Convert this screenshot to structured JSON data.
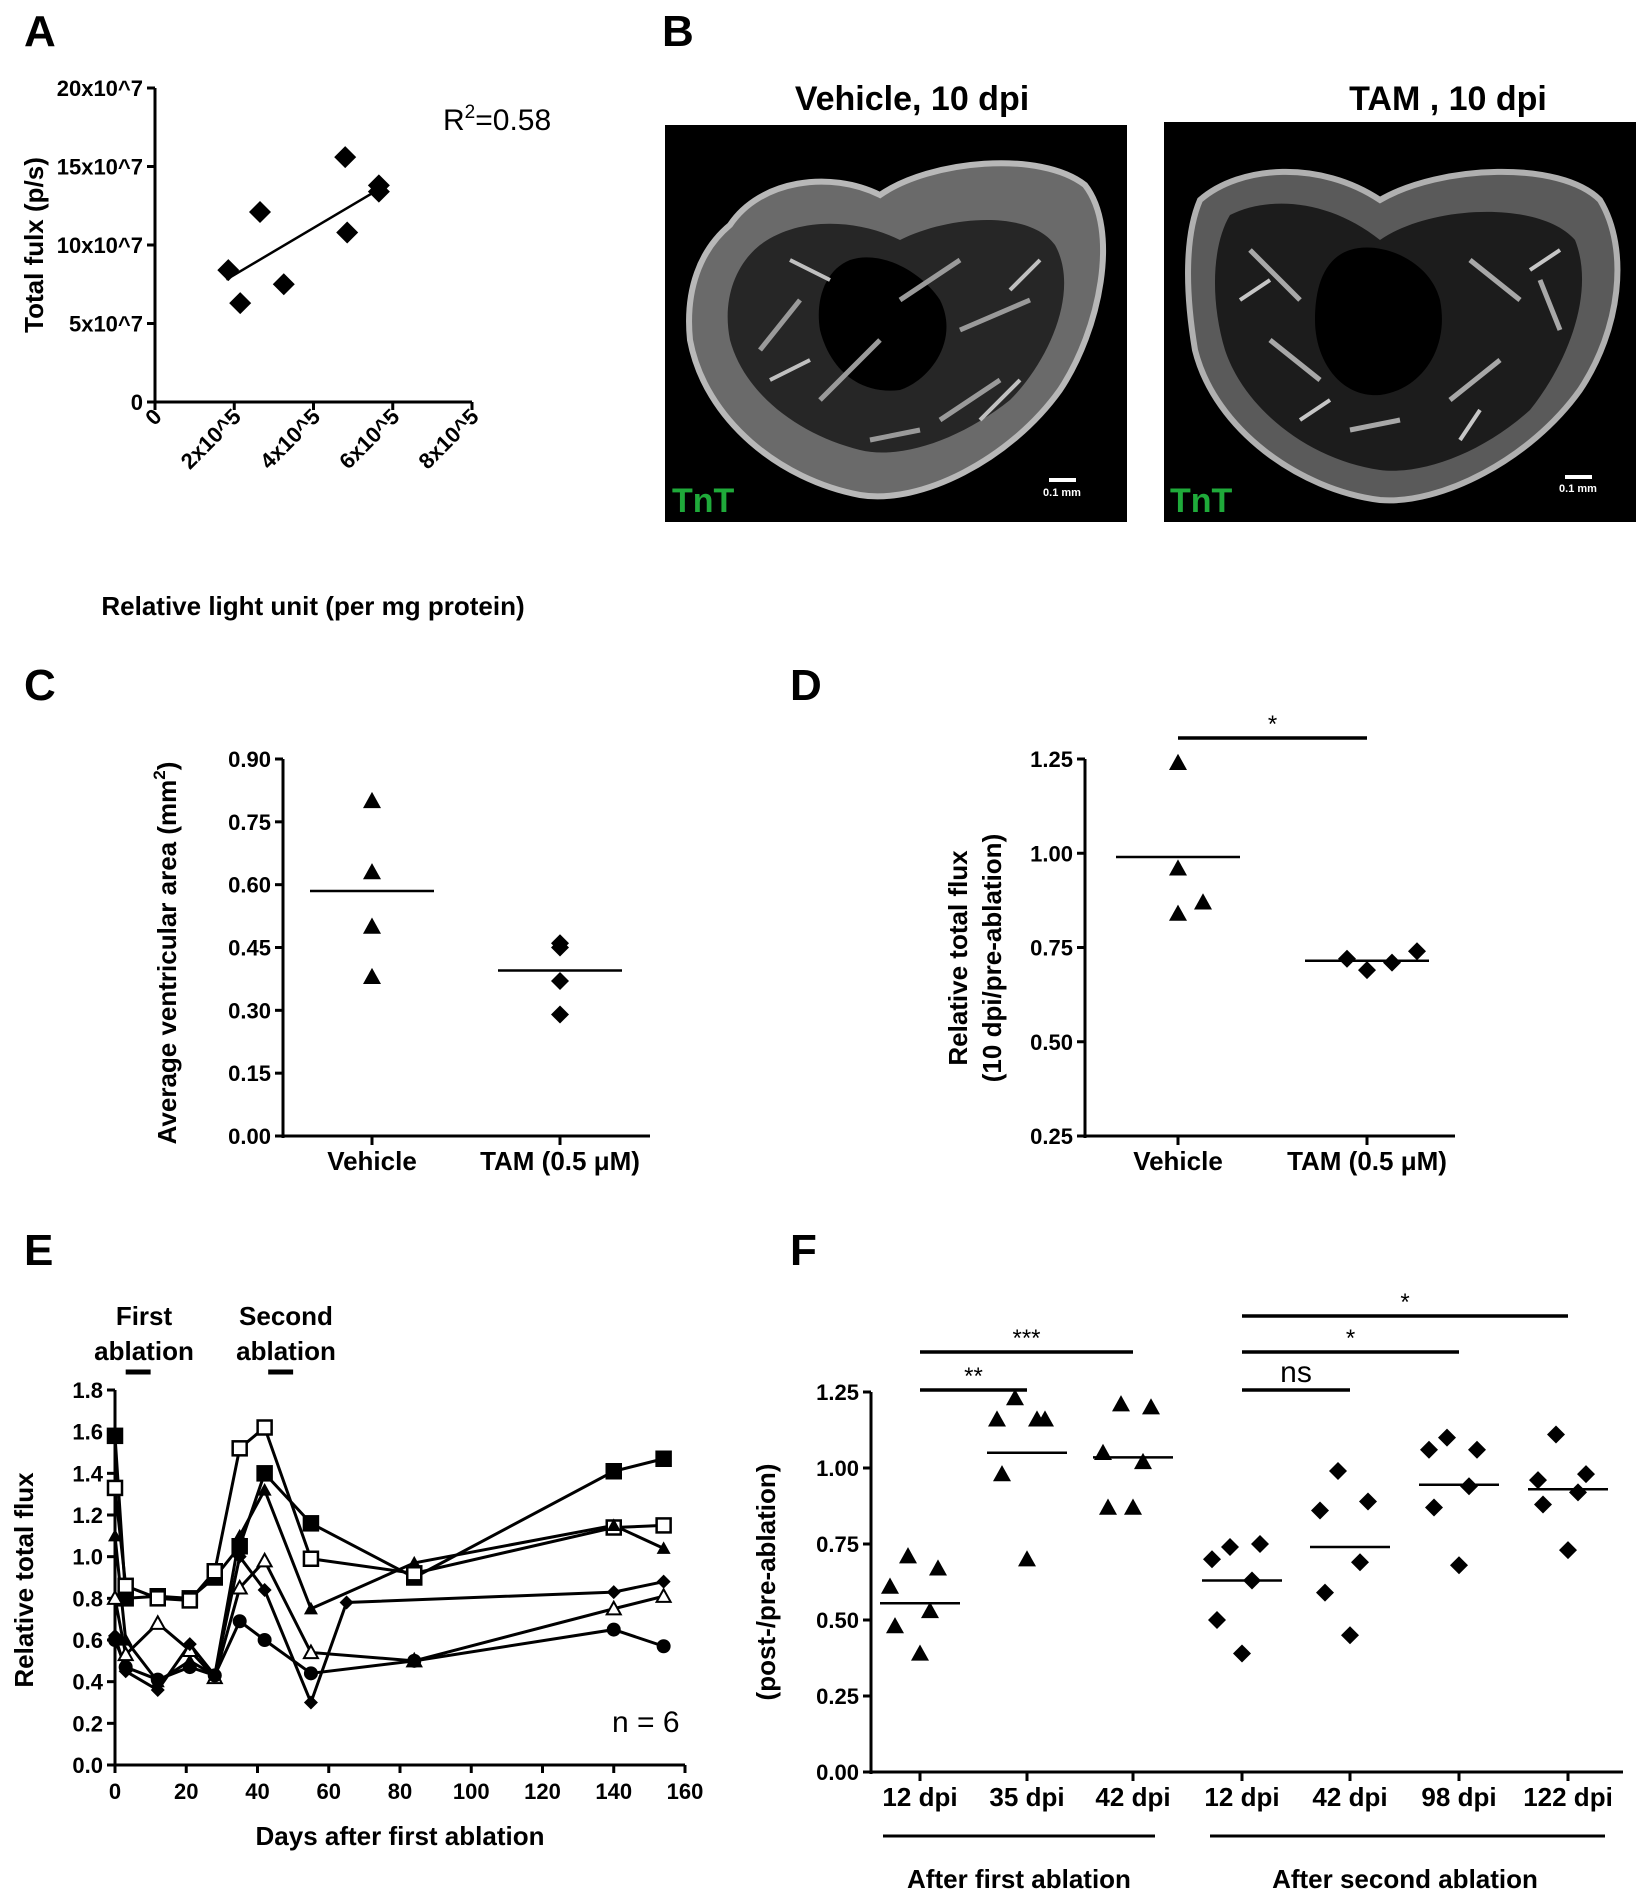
{
  "panels": {
    "A": {
      "letter": "A",
      "annotation_r2_base": "R",
      "annotation_r2_sup": "2",
      "annotation_r2_value": "=0.58",
      "chart_data": {
        "type": "scatter",
        "xlabel": "Relative light unit (per mg protein)",
        "ylabel": "Total fulx (p/s)",
        "xlim": [
          0,
          800000
        ],
        "ylim": [
          0,
          200000000
        ],
        "x_ticks": [
          0,
          200000,
          400000,
          600000,
          800000
        ],
        "x_tick_labels": [
          "0",
          "2x10^5",
          "4x10^5",
          "6x10^5",
          "8x10^5"
        ],
        "y_ticks": [
          0,
          50000000,
          100000000,
          150000000,
          200000000
        ],
        "y_tick_labels": [
          "0",
          "5x10^7",
          "10x10^7",
          "15x10^7",
          "20x10^7"
        ],
        "points": [
          {
            "x": 185000,
            "y": 84000000
          },
          {
            "x": 215000,
            "y": 63000000
          },
          {
            "x": 265000,
            "y": 121000000
          },
          {
            "x": 325000,
            "y": 75000000
          },
          {
            "x": 485000,
            "y": 108000000
          },
          {
            "x": 480000,
            "y": 156000000
          },
          {
            "x": 565000,
            "y": 138000000
          },
          {
            "x": 565000,
            "y": 134000000
          }
        ],
        "fit_line": {
          "x": [
            180000,
            575000
          ],
          "y": [
            78000000,
            137000000
          ]
        },
        "marker": "diamond"
      }
    },
    "B": {
      "letter": "B",
      "left_title": "Vehicle, 10 dpi",
      "right_title": "TAM , 10 dpi",
      "left_stain": "TnT",
      "right_stain": "TnT",
      "left_scale": "0.1 mm",
      "right_scale": "0.1 mm"
    },
    "C": {
      "letter": "C",
      "chart_data": {
        "type": "scatter",
        "ylabel": "Average ventricular area (mm",
        "ylabel_sup": "2",
        "ylabel_end": ")",
        "ylim": [
          0,
          0.9
        ],
        "y_ticks": [
          0,
          0.15,
          0.3,
          0.45,
          0.6,
          0.75,
          0.9
        ],
        "y_tick_labels": [
          "0.00",
          "0.15",
          "0.30",
          "0.45",
          "0.60",
          "0.75",
          "0.90"
        ],
        "categories": [
          "Vehicle",
          "TAM (0.5 μM)"
        ],
        "groups": [
          {
            "marker": "triangle",
            "values": [
              0.8,
              0.63,
              0.5,
              0.38
            ],
            "mean": 0.585
          },
          {
            "marker": "diamond",
            "values": [
              0.45,
              0.46,
              0.37,
              0.29
            ],
            "mean": 0.395
          }
        ]
      }
    },
    "D": {
      "letter": "D",
      "sig_label": "*",
      "chart_data": {
        "type": "scatter",
        "ylabel_line1": "Relative total flux",
        "ylabel_line2": "(10 dpi/pre-ablation)",
        "ylim": [
          0.25,
          1.25
        ],
        "y_ticks": [
          0.25,
          0.5,
          0.75,
          1.0,
          1.25
        ],
        "y_tick_labels": [
          "0.25",
          "0.50",
          "0.75",
          "1.00",
          "1.25"
        ],
        "categories": [
          "Vehicle",
          "TAM (0.5 μM)"
        ],
        "groups": [
          {
            "marker": "triangle",
            "values": [
              1.24,
              0.96,
              0.84,
              0.87
            ],
            "mean": 0.99
          },
          {
            "marker": "diamond",
            "values": [
              0.72,
              0.69,
              0.71,
              0.74
            ],
            "mean": 0.715
          }
        ],
        "significance": [
          {
            "from": 0,
            "to": 1,
            "label": "*"
          }
        ]
      }
    },
    "E": {
      "letter": "E",
      "first_ablation_label": "First\nablation",
      "first_label_line1": "First",
      "first_label_line2": "ablation",
      "second_label_line1": "Second",
      "second_label_line2": "ablation",
      "n_label": "n = 6",
      "chart_data": {
        "type": "line",
        "xlabel": "Days after first ablation",
        "ylabel": "Relative total flux",
        "xlim": [
          0,
          160
        ],
        "ylim": [
          0,
          1.8
        ],
        "x_ticks": [
          0,
          20,
          40,
          60,
          80,
          100,
          120,
          140,
          160
        ],
        "x_tick_labels": [
          "0",
          "20",
          "40",
          "60",
          "80",
          "100",
          "120",
          "140",
          "160"
        ],
        "y_ticks": [
          0,
          0.2,
          0.4,
          0.6,
          0.8,
          1.0,
          1.2,
          1.4,
          1.6,
          1.8
        ],
        "y_tick_labels": [
          "0.0",
          "0.2",
          "0.4",
          "0.6",
          "0.8",
          "1.0",
          "1.2",
          "1.4",
          "1.6",
          "1.8"
        ],
        "ablation_bars": [
          {
            "start": 3,
            "end": 10
          },
          {
            "start": 43,
            "end": 50
          }
        ],
        "series": [
          {
            "marker": "filled-square",
            "x": [
              0,
              3,
              12,
              21,
              28,
              35,
              42,
              55,
              84,
              140,
              154
            ],
            "y": [
              1.58,
              0.8,
              0.81,
              0.8,
              0.9,
              1.05,
              1.4,
              1.16,
              0.9,
              1.41,
              1.47
            ]
          },
          {
            "marker": "open-square",
            "x": [
              0,
              3,
              12,
              21,
              28,
              35,
              42,
              55,
              84,
              140,
              154
            ],
            "y": [
              1.33,
              0.86,
              0.8,
              0.79,
              0.93,
              1.52,
              1.62,
              0.99,
              0.92,
              1.14,
              1.15
            ]
          },
          {
            "marker": "filled-triangle",
            "x": [
              0,
              3,
              12,
              21,
              28,
              35,
              42,
              55,
              84,
              140,
              154
            ],
            "y": [
              1.1,
              0.6,
              0.4,
              0.5,
              0.43,
              1.1,
              1.32,
              0.75,
              0.97,
              1.15,
              1.04
            ]
          },
          {
            "marker": "open-triangle",
            "x": [
              0,
              3,
              12,
              21,
              28,
              35,
              42,
              55,
              84,
              140,
              154
            ],
            "y": [
              0.8,
              0.53,
              0.68,
              0.55,
              0.42,
              0.85,
              0.98,
              0.54,
              0.5,
              0.75,
              0.81
            ]
          },
          {
            "marker": "filled-diamond",
            "x": [
              0,
              3,
              12,
              21,
              28,
              35,
              42,
              55,
              65,
              140,
              154
            ],
            "y": [
              0.62,
              0.45,
              0.36,
              0.58,
              0.43,
              1.0,
              0.84,
              0.3,
              0.78,
              0.83,
              0.88
            ]
          },
          {
            "marker": "filled-circle",
            "x": [
              0,
              3,
              12,
              21,
              28,
              35,
              42,
              55,
              84,
              140,
              154
            ],
            "y": [
              0.6,
              0.47,
              0.41,
              0.47,
              0.43,
              0.69,
              0.6,
              0.44,
              0.5,
              0.65,
              0.57
            ]
          }
        ]
      }
    },
    "F": {
      "letter": "F",
      "group_label_1": "After first ablation",
      "group_label_2": "After second ablation",
      "chart_data": {
        "type": "scatter",
        "ylabel": "(post-/pre-ablation)",
        "ylim": [
          0,
          1.25
        ],
        "y_ticks": [
          0,
          0.25,
          0.5,
          0.75,
          1.0,
          1.25
        ],
        "y_tick_labels": [
          "0.00",
          "0.25",
          "0.50",
          "0.75",
          "1.00",
          "1.25"
        ],
        "categories": [
          "12 dpi",
          "35 dpi",
          "42 dpi",
          "12 dpi",
          "42 dpi",
          "98 dpi",
          "122 dpi"
        ],
        "groups": [
          {
            "marker": "triangle",
            "values": [
              0.71,
              0.67,
              0.61,
              0.53,
              0.48,
              0.39
            ],
            "mean": 0.555
          },
          {
            "marker": "triangle",
            "values": [
              1.23,
              1.16,
              1.16,
              1.16,
              0.98,
              0.7
            ],
            "mean": 1.05
          },
          {
            "marker": "triangle",
            "values": [
              1.21,
              1.2,
              1.05,
              1.02,
              0.87,
              0.87
            ],
            "mean": 1.035
          },
          {
            "marker": "diamond",
            "values": [
              0.74,
              0.75,
              0.7,
              0.63,
              0.5,
              0.39
            ],
            "mean": 0.63
          },
          {
            "marker": "diamond",
            "values": [
              0.99,
              0.89,
              0.86,
              0.69,
              0.59,
              0.45
            ],
            "mean": 0.74
          },
          {
            "marker": "diamond",
            "values": [
              1.1,
              1.06,
              1.06,
              0.94,
              0.87,
              0.68
            ],
            "mean": 0.945
          },
          {
            "marker": "diamond",
            "values": [
              1.11,
              0.98,
              0.96,
              0.92,
              0.88,
              0.73
            ],
            "mean": 0.93
          }
        ],
        "significance": [
          {
            "from": 0,
            "to": 1,
            "label": "**"
          },
          {
            "from": 0,
            "to": 2,
            "label": "***"
          },
          {
            "from": 3,
            "to": 4,
            "label": "ns"
          },
          {
            "from": 3,
            "to": 5,
            "label": "*"
          },
          {
            "from": 3,
            "to": 6,
            "label": "*"
          }
        ]
      }
    }
  }
}
